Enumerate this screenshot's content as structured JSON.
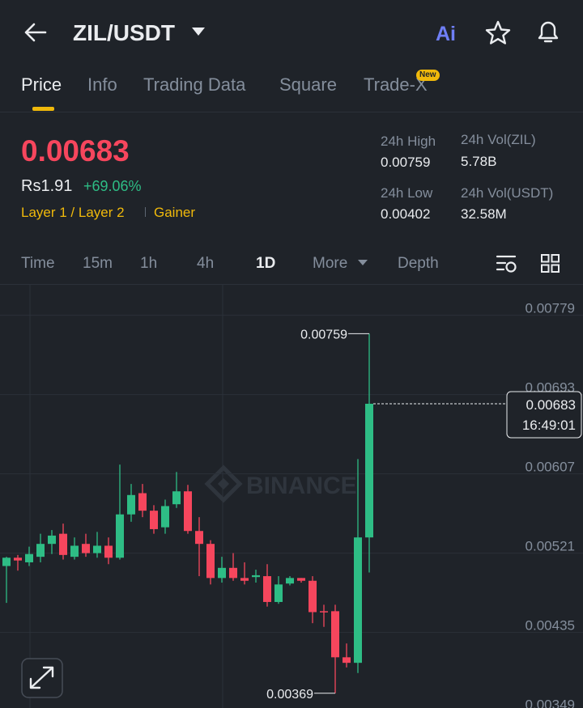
{
  "header": {
    "pair": "ZIL/USDT",
    "ai": "Ai"
  },
  "tabs": [
    "Price",
    "Info",
    "Trading Data",
    "Square",
    "Trade-X"
  ],
  "badge": "New",
  "stats": {
    "price": "0.00683",
    "fiat": "Rs1.91",
    "change": "+69.06%",
    "tags": [
      "Layer 1 / Layer 2",
      "Gainer"
    ],
    "high_label": "24h High",
    "high": "0.00759",
    "low_label": "24h Low",
    "low": "0.00402",
    "vol_base_label": "24h Vol(ZIL)",
    "vol_base": "5.78B",
    "vol_quote_label": "24h Vol(USDT)",
    "vol_quote": "32.58M"
  },
  "intervals": [
    "Time",
    "15m",
    "1h",
    "4h",
    "1D",
    "More",
    "Depth"
  ],
  "chart_data": {
    "type": "candlestick",
    "watermark": "BINANCE",
    "up_color": "#2ebd85",
    "down_color": "#f6465d",
    "ylim": [
      0.00353,
      0.00812
    ],
    "yticks": [
      0.00779,
      0.00693,
      0.00607,
      0.00521,
      0.00435,
      0.00349
    ],
    "grid": true,
    "current_time": "16:49:01",
    "candles": [
      {
        "open": 0.00507,
        "high": 0.00517,
        "low": 0.00467,
        "close": 0.00516
      },
      {
        "open": 0.00516,
        "high": 0.00519,
        "low": 0.00502,
        "close": 0.00513
      },
      {
        "open": 0.00511,
        "high": 0.00528,
        "low": 0.00507,
        "close": 0.0052
      },
      {
        "open": 0.00517,
        "high": 0.00542,
        "low": 0.00511,
        "close": 0.00531
      },
      {
        "open": 0.00531,
        "high": 0.00546,
        "low": 0.0052,
        "close": 0.0054
      },
      {
        "open": 0.00542,
        "high": 0.00553,
        "low": 0.00514,
        "close": 0.00519
      },
      {
        "open": 0.00517,
        "high": 0.00538,
        "low": 0.00514,
        "close": 0.00529
      },
      {
        "open": 0.00531,
        "high": 0.00542,
        "low": 0.00517,
        "close": 0.00521
      },
      {
        "open": 0.00521,
        "high": 0.00544,
        "low": 0.00516,
        "close": 0.00529
      },
      {
        "open": 0.00529,
        "high": 0.00538,
        "low": 0.00509,
        "close": 0.00516
      },
      {
        "open": 0.00516,
        "high": 0.00617,
        "low": 0.00514,
        "close": 0.00563
      },
      {
        "open": 0.00563,
        "high": 0.00596,
        "low": 0.00555,
        "close": 0.00584
      },
      {
        "open": 0.00586,
        "high": 0.00596,
        "low": 0.0056,
        "close": 0.00567
      },
      {
        "open": 0.00567,
        "high": 0.00573,
        "low": 0.00542,
        "close": 0.00547
      },
      {
        "open": 0.00549,
        "high": 0.00579,
        "low": 0.00542,
        "close": 0.00572
      },
      {
        "open": 0.00574,
        "high": 0.00609,
        "low": 0.0057,
        "close": 0.00588
      },
      {
        "open": 0.00588,
        "high": 0.00595,
        "low": 0.00542,
        "close": 0.00545
      },
      {
        "open": 0.00545,
        "high": 0.0056,
        "low": 0.00496,
        "close": 0.00531
      },
      {
        "open": 0.00531,
        "high": 0.00535,
        "low": 0.00487,
        "close": 0.00494
      },
      {
        "open": 0.00494,
        "high": 0.00517,
        "low": 0.00489,
        "close": 0.00505
      },
      {
        "open": 0.00505,
        "high": 0.00521,
        "low": 0.00491,
        "close": 0.00494
      },
      {
        "open": 0.00494,
        "high": 0.00511,
        "low": 0.00487,
        "close": 0.00491
      },
      {
        "open": 0.00495,
        "high": 0.00503,
        "low": 0.00489,
        "close": 0.00497
      },
      {
        "open": 0.00496,
        "high": 0.00509,
        "low": 0.00463,
        "close": 0.00468
      },
      {
        "open": 0.00468,
        "high": 0.00496,
        "low": 0.00466,
        "close": 0.00487
      },
      {
        "open": 0.00488,
        "high": 0.00496,
        "low": 0.00486,
        "close": 0.00494
      },
      {
        "open": 0.00494,
        "high": 0.00494,
        "low": 0.00489,
        "close": 0.00491
      },
      {
        "open": 0.00491,
        "high": 0.00496,
        "low": 0.00445,
        "close": 0.00457
      },
      {
        "open": 0.00458,
        "high": 0.00465,
        "low": 0.00441,
        "close": 0.00457
      },
      {
        "open": 0.00458,
        "high": 0.00465,
        "low": 0.00369,
        "close": 0.00408
      },
      {
        "open": 0.00408,
        "high": 0.00423,
        "low": 0.00397,
        "close": 0.00402
      },
      {
        "open": 0.00402,
        "high": 0.00623,
        "low": 0.00391,
        "close": 0.00538
      },
      {
        "open": 0.00538,
        "high": 0.00759,
        "low": 0.005,
        "close": 0.00683
      }
    ]
  }
}
